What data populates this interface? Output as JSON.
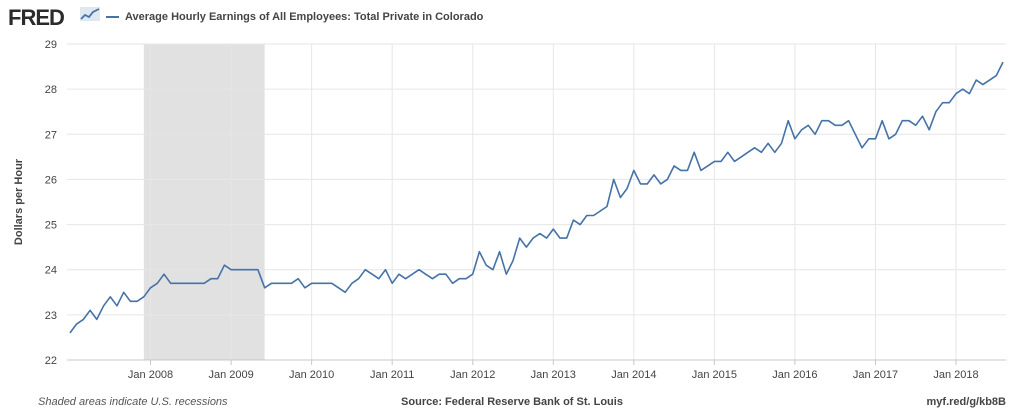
{
  "header": {
    "logo_text": "FRED",
    "logo_icon": "fred-chart-line-icon"
  },
  "footer": {
    "note": "Shaded areas indicate U.S. recessions",
    "source": "Source: Federal Reserve Bank of St. Louis",
    "link": "myf.red/g/kb8B"
  },
  "colors": {
    "series": "#4572a7",
    "recession": "#e1e1e1",
    "grid": "#e6e6e6",
    "axis": "#c8c8c8"
  },
  "chart_data": {
    "type": "line",
    "title": "",
    "xlabel": "",
    "ylabel": "Dollars per Hour",
    "ylim": [
      22,
      29
    ],
    "yticks": [
      22,
      23,
      24,
      25,
      26,
      27,
      28,
      29
    ],
    "xtick_labels": [
      "Jan 2008",
      "Jan 2009",
      "Jan 2010",
      "Jan 2011",
      "Jan 2012",
      "Jan 2013",
      "Jan 2014",
      "Jan 2015",
      "Jan 2016",
      "Jan 2017",
      "Jan 2018"
    ],
    "grid": true,
    "legend": "top-left",
    "recessions": [
      {
        "start": "2007-12",
        "end": "2009-06"
      }
    ],
    "series": [
      {
        "name": "Average Hourly Earnings of All Employees: Total Private in Colorado",
        "start": "2007-01",
        "frequency": "monthly",
        "values": [
          22.6,
          22.8,
          22.9,
          23.1,
          22.9,
          23.2,
          23.4,
          23.2,
          23.5,
          23.3,
          23.3,
          23.4,
          23.6,
          23.7,
          23.9,
          23.7,
          23.7,
          23.7,
          23.7,
          23.7,
          23.7,
          23.8,
          23.8,
          24.1,
          24.0,
          24.0,
          24.0,
          24.0,
          24.0,
          23.6,
          23.7,
          23.7,
          23.7,
          23.7,
          23.8,
          23.6,
          23.7,
          23.7,
          23.7,
          23.7,
          23.6,
          23.5,
          23.7,
          23.8,
          24.0,
          23.9,
          23.8,
          24.0,
          23.7,
          23.9,
          23.8,
          23.9,
          24.0,
          23.9,
          23.8,
          23.9,
          23.9,
          23.7,
          23.8,
          23.8,
          23.9,
          24.4,
          24.1,
          24.0,
          24.4,
          23.9,
          24.2,
          24.7,
          24.5,
          24.7,
          24.8,
          24.7,
          24.9,
          24.7,
          24.7,
          25.1,
          25.0,
          25.2,
          25.2,
          25.3,
          25.4,
          26.0,
          25.6,
          25.8,
          26.2,
          25.9,
          25.9,
          26.1,
          25.9,
          26.0,
          26.3,
          26.2,
          26.2,
          26.6,
          26.2,
          26.3,
          26.4,
          26.4,
          26.6,
          26.4,
          26.5,
          26.6,
          26.7,
          26.6,
          26.8,
          26.6,
          26.8,
          27.3,
          26.9,
          27.1,
          27.2,
          27.0,
          27.3,
          27.3,
          27.2,
          27.2,
          27.3,
          27.0,
          26.7,
          26.9,
          26.9,
          27.3,
          26.9,
          27.0,
          27.3,
          27.3,
          27.2,
          27.4,
          27.1,
          27.5,
          27.7,
          27.7,
          27.9,
          28.0,
          27.9,
          28.2,
          28.1,
          28.2,
          28.3,
          28.6
        ]
      }
    ]
  }
}
